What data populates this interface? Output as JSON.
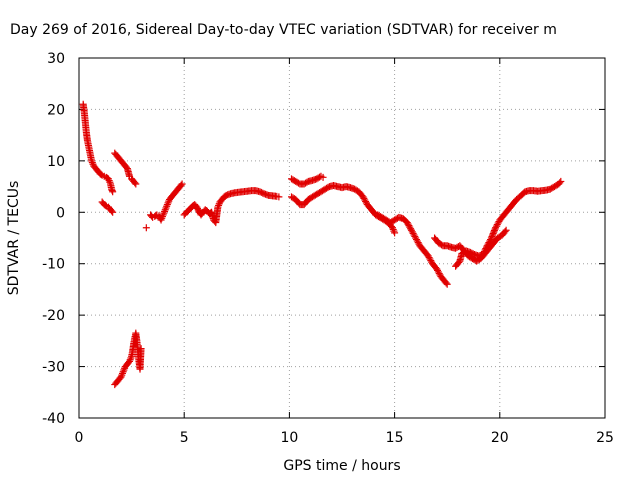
{
  "chart_data": {
    "type": "scatter",
    "title": "Day 269 of 2016, Sidereal Day-to-day VTEC variation (SDTVAR) for receiver m",
    "xlabel": "GPS time / hours",
    "ylabel": "SDTVAR / TECUs",
    "xlim": [
      0,
      25
    ],
    "ylim": [
      -40,
      30
    ],
    "xticks": [
      0,
      5,
      10,
      15,
      20,
      25
    ],
    "yticks": [
      -40,
      -30,
      -20,
      -10,
      0,
      10,
      20,
      30
    ],
    "grid": true,
    "legend": "none",
    "marker": "plus",
    "color": "#e00000",
    "segments": [
      [
        [
          0.2,
          21
        ],
        [
          0.25,
          19.5
        ],
        [
          0.3,
          17.5
        ],
        [
          0.35,
          15.5
        ],
        [
          0.4,
          14
        ],
        [
          0.45,
          13
        ],
        [
          0.5,
          12
        ],
        [
          0.55,
          11
        ],
        [
          0.6,
          10
        ],
        [
          0.7,
          9
        ],
        [
          0.8,
          8.5
        ],
        [
          0.9,
          8
        ],
        [
          1.0,
          7.5
        ],
        [
          1.1,
          7.2
        ],
        [
          1.2,
          7
        ],
        [
          1.3,
          6.8
        ],
        [
          1.4,
          6.5
        ],
        [
          1.5,
          5.5
        ],
        [
          1.55,
          4.5
        ],
        [
          1.6,
          4
        ]
      ],
      [
        [
          1.1,
          2
        ],
        [
          1.2,
          1.5
        ],
        [
          1.3,
          1.2
        ],
        [
          1.4,
          1
        ],
        [
          1.5,
          0.5
        ],
        [
          1.6,
          0
        ]
      ],
      [
        [
          1.7,
          11.5
        ],
        [
          1.8,
          11
        ],
        [
          1.9,
          10.5
        ],
        [
          2.0,
          10
        ],
        [
          2.1,
          9.5
        ],
        [
          2.2,
          9
        ],
        [
          2.3,
          8.5
        ],
        [
          2.4,
          7
        ]
      ],
      [
        [
          2.5,
          6.5
        ],
        [
          2.6,
          6
        ],
        [
          2.7,
          5.5
        ]
      ],
      [
        [
          1.7,
          -33.5
        ],
        [
          1.8,
          -33
        ],
        [
          1.9,
          -32.5
        ],
        [
          2.0,
          -32
        ],
        [
          2.1,
          -31
        ],
        [
          2.2,
          -30
        ],
        [
          2.3,
          -29.5
        ],
        [
          2.4,
          -29
        ],
        [
          2.5,
          -28
        ],
        [
          2.55,
          -27
        ],
        [
          2.6,
          -25.5
        ],
        [
          2.65,
          -24.5
        ],
        [
          2.7,
          -23.5
        ],
        [
          2.75,
          -25
        ],
        [
          2.8,
          -27
        ],
        [
          2.85,
          -29
        ],
        [
          2.9,
          -30.5
        ],
        [
          2.95,
          -26.5
        ]
      ],
      [
        [
          3.2,
          -3
        ]
      ],
      [
        [
          3.4,
          -0.5
        ],
        [
          3.5,
          -1
        ],
        [
          3.6,
          -0.8
        ],
        [
          3.7,
          -0.5
        ],
        [
          3.8,
          -0.7
        ],
        [
          3.9,
          -1.5
        ],
        [
          4.0,
          -0.5
        ],
        [
          4.1,
          0.5
        ],
        [
          4.2,
          1.5
        ],
        [
          4.3,
          2.5
        ],
        [
          4.4,
          3
        ],
        [
          4.5,
          3.5
        ],
        [
          4.6,
          4
        ],
        [
          4.7,
          4.5
        ],
        [
          4.8,
          5
        ],
        [
          4.9,
          5.5
        ]
      ],
      [
        [
          5.0,
          -0.5
        ],
        [
          5.1,
          0
        ],
        [
          5.2,
          0.3
        ],
        [
          5.3,
          0.8
        ],
        [
          5.4,
          1.2
        ],
        [
          5.5,
          1.5
        ],
        [
          5.6,
          1
        ],
        [
          5.7,
          0.2
        ],
        [
          5.8,
          -0.5
        ],
        [
          5.9,
          0
        ],
        [
          6.0,
          0.5
        ],
        [
          6.1,
          0.2
        ],
        [
          6.2,
          -0.3
        ],
        [
          6.3,
          0
        ],
        [
          6.4,
          -1.5
        ],
        [
          6.5,
          -2
        ],
        [
          6.55,
          -0.5
        ],
        [
          6.6,
          1
        ],
        [
          6.7,
          2
        ],
        [
          6.8,
          2.5
        ],
        [
          6.9,
          3
        ],
        [
          7.0,
          3.3
        ],
        [
          7.2,
          3.6
        ],
        [
          7.4,
          3.8
        ],
        [
          7.6,
          3.9
        ],
        [
          7.8,
          4
        ],
        [
          8.0,
          4.1
        ],
        [
          8.2,
          4.2
        ],
        [
          8.4,
          4.2
        ],
        [
          8.6,
          4
        ],
        [
          8.8,
          3.6
        ],
        [
          9.0,
          3.3
        ],
        [
          9.2,
          3.2
        ],
        [
          9.4,
          3.1
        ],
        [
          9.5,
          3
        ]
      ],
      [
        [
          10.1,
          6.5
        ],
        [
          10.3,
          6
        ],
        [
          10.5,
          5.5
        ],
        [
          10.7,
          5.5
        ],
        [
          10.9,
          6
        ],
        [
          11.1,
          6.2
        ],
        [
          11.3,
          6.5
        ],
        [
          11.5,
          7
        ],
        [
          11.6,
          6.8
        ]
      ],
      [
        [
          10.1,
          3
        ],
        [
          10.3,
          2.5
        ],
        [
          10.5,
          1.5
        ],
        [
          10.7,
          1.5
        ],
        [
          10.9,
          2.5
        ],
        [
          11.1,
          3
        ],
        [
          11.3,
          3.5
        ],
        [
          11.5,
          4
        ],
        [
          11.7,
          4.5
        ],
        [
          11.9,
          5
        ],
        [
          12.1,
          5.2
        ],
        [
          12.3,
          5
        ],
        [
          12.5,
          4.8
        ],
        [
          12.7,
          5
        ],
        [
          12.9,
          4.8
        ],
        [
          13.1,
          4.5
        ],
        [
          13.3,
          4
        ],
        [
          13.5,
          3
        ],
        [
          13.7,
          1.5
        ],
        [
          13.9,
          0.5
        ],
        [
          14.1,
          -0.5
        ],
        [
          14.3,
          -1
        ],
        [
          14.5,
          -1.5
        ],
        [
          14.7,
          -2
        ],
        [
          14.9,
          -3
        ],
        [
          15.0,
          -4
        ]
      ],
      [
        [
          14.2,
          -0.5
        ],
        [
          14.4,
          -1
        ],
        [
          14.6,
          -1.5
        ],
        [
          14.8,
          -2
        ],
        [
          15.0,
          -1.5
        ],
        [
          15.2,
          -1
        ],
        [
          15.4,
          -1.2
        ],
        [
          15.6,
          -2
        ],
        [
          15.8,
          -3.5
        ],
        [
          16.0,
          -5
        ],
        [
          16.2,
          -6.5
        ],
        [
          16.4,
          -7.5
        ],
        [
          16.6,
          -8.5
        ],
        [
          16.8,
          -10
        ],
        [
          17.0,
          -11
        ],
        [
          17.2,
          -12.5
        ],
        [
          17.4,
          -13.5
        ],
        [
          17.5,
          -14
        ]
      ],
      [
        [
          16.9,
          -5
        ],
        [
          17.1,
          -6
        ],
        [
          17.3,
          -6.5
        ],
        [
          17.5,
          -6.5
        ],
        [
          17.7,
          -6.8
        ],
        [
          17.9,
          -7
        ],
        [
          18.1,
          -6.5
        ],
        [
          18.3,
          -7.5
        ],
        [
          18.5,
          -8.5
        ],
        [
          18.7,
          -9
        ],
        [
          18.9,
          -9.5
        ],
        [
          19.1,
          -9
        ],
        [
          19.3,
          -8
        ],
        [
          19.5,
          -7
        ],
        [
          19.7,
          -6
        ],
        [
          19.9,
          -5
        ],
        [
          20.1,
          -4.5
        ],
        [
          20.3,
          -3.5
        ]
      ],
      [
        [
          17.9,
          -10.5
        ],
        [
          18.1,
          -9.5
        ],
        [
          18.2,
          -8
        ],
        [
          18.4,
          -7.5
        ],
        [
          18.6,
          -7.8
        ],
        [
          18.8,
          -8.2
        ],
        [
          19.0,
          -8.5
        ],
        [
          19.2,
          -8.2
        ],
        [
          19.4,
          -6.5
        ],
        [
          19.6,
          -5
        ],
        [
          19.8,
          -3
        ],
        [
          20.0,
          -1.5
        ],
        [
          20.2,
          -0.5
        ],
        [
          20.4,
          0.5
        ],
        [
          20.6,
          1.5
        ],
        [
          20.8,
          2.5
        ],
        [
          21.0,
          3.2
        ],
        [
          21.2,
          4
        ],
        [
          21.4,
          4.2
        ],
        [
          21.6,
          4.2
        ],
        [
          21.8,
          4.1
        ],
        [
          22.0,
          4.2
        ],
        [
          22.2,
          4.3
        ],
        [
          22.4,
          4.5
        ],
        [
          22.6,
          5
        ],
        [
          22.8,
          5.5
        ],
        [
          22.9,
          6
        ]
      ]
    ]
  }
}
